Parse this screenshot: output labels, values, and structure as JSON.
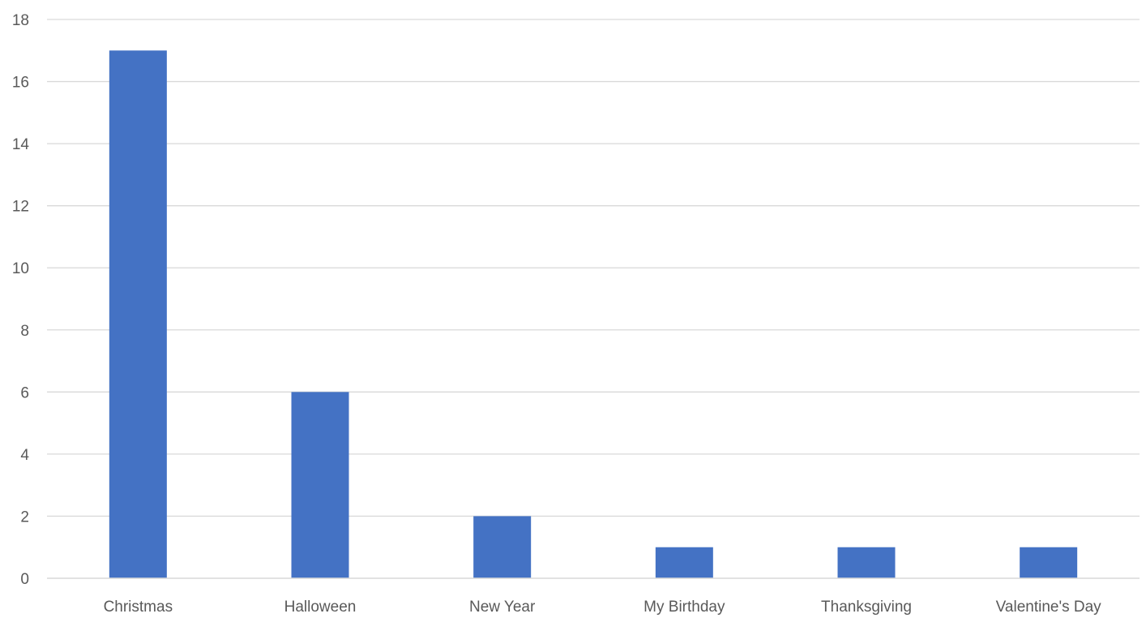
{
  "chart_data": {
    "type": "bar",
    "title": "",
    "xlabel": "",
    "ylabel": "",
    "categories": [
      "Christmas",
      "Halloween",
      "New Year",
      "My Birthday",
      "Thanksgiving",
      "Valentine's Day"
    ],
    "values": [
      17,
      6,
      2,
      1,
      1,
      1
    ],
    "ylim": [
      0,
      18
    ],
    "y_ticks": [
      "0",
      "2",
      "4",
      "6",
      "8",
      "10",
      "12",
      "14",
      "16",
      "18"
    ],
    "grid": true,
    "legend": "none",
    "bar_color": "#4472C4",
    "grid_color": "#D9D9D9",
    "axis_color": "#D9D9D9",
    "text_color": "#595959"
  }
}
